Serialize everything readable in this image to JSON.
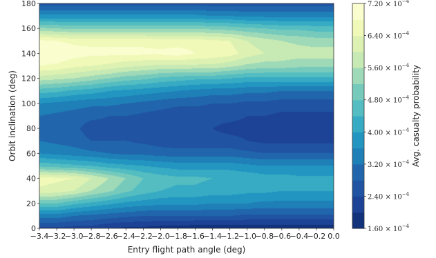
{
  "chart_data": {
    "type": "heatmap",
    "subtype": "filled-contour",
    "title": "",
    "xlabel": "Entry flight path angle (deg)",
    "ylabel": "Orbit inclination (deg)",
    "colorbar_label": "Avg. casualty probability",
    "x": [
      -3.4,
      -3.2,
      -3.0,
      -2.8,
      -2.6,
      -2.4,
      -2.2,
      -2.0,
      -1.8,
      -1.6,
      -1.4,
      -1.2,
      -1.0,
      -0.8,
      -0.6,
      -0.4,
      -0.2,
      0.0
    ],
    "y": [
      0,
      10,
      20,
      30,
      40,
      50,
      60,
      70,
      80,
      90,
      100,
      110,
      120,
      130,
      140,
      150,
      160,
      170,
      180
    ],
    "xlim": [
      -3.4,
      0.0
    ],
    "ylim": [
      0,
      180
    ],
    "xtick_labels": [
      "−3.4",
      "−3.2",
      "−3.0",
      "−2.8",
      "−2.6",
      "−2.4",
      "−2.2",
      "−2.0",
      "−1.8",
      "−1.6",
      "−1.4",
      "−1.2",
      "−1.0",
      "−0.8",
      "−0.6",
      "−0.4",
      "−0.2",
      "0.0"
    ],
    "ytick_labels": [
      "0",
      "20",
      "40",
      "60",
      "80",
      "100",
      "120",
      "140",
      "160",
      "180"
    ],
    "colorbar_ticks": [
      {
        "value": 0.00072,
        "mantissa": "7.20",
        "exp": "−4"
      },
      {
        "value": 0.00064,
        "mantissa": "6.40",
        "exp": "−4"
      },
      {
        "value": 0.00056,
        "mantissa": "5.60",
        "exp": "−4"
      },
      {
        "value": 0.00048,
        "mantissa": "4.80",
        "exp": "−4"
      },
      {
        "value": 0.0004,
        "mantissa": "4.00",
        "exp": "−4"
      },
      {
        "value": 0.00032,
        "mantissa": "3.20",
        "exp": "−4"
      },
      {
        "value": 0.00024,
        "mantissa": "2.40",
        "exp": "−4"
      },
      {
        "value": 0.00016,
        "mantissa": "1.60",
        "exp": "−4"
      }
    ],
    "cbar_range": [
      0.00016,
      0.00072
    ],
    "colormap": "YlGnBu",
    "colormap_stops": [
      "#0c2a6f",
      "#20479c",
      "#2166ac",
      "#1d91c0",
      "#41b6c4",
      "#7fcdbb",
      "#c7e9b4",
      "#edf8b1",
      "#ffffd9"
    ],
    "grid": false,
    "values_e4": [
      [
        2.3,
        2.3,
        2.2,
        2.2,
        2.0,
        1.9,
        1.9,
        1.8,
        1.8,
        1.7,
        1.7,
        1.7,
        1.7,
        1.7,
        1.7,
        1.7,
        1.7,
        1.7
      ],
      [
        3.4,
        3.4,
        3.2,
        3.1,
        3.0,
        2.9,
        2.8,
        2.8,
        2.8,
        2.8,
        2.8,
        2.8,
        2.7,
        2.7,
        2.7,
        2.7,
        2.7,
        2.7
      ],
      [
        4.8,
        4.8,
        4.5,
        4.3,
        4.1,
        3.9,
        3.8,
        3.7,
        3.7,
        3.7,
        3.6,
        3.6,
        3.6,
        3.5,
        3.5,
        3.5,
        3.5,
        3.5
      ],
      [
        6.3,
        6.2,
        6.0,
        5.6,
        5.3,
        4.9,
        4.6,
        4.4,
        4.3,
        4.3,
        4.2,
        4.2,
        4.1,
        4.1,
        4.0,
        4.0,
        4.0,
        4.0
      ],
      [
        6.6,
        6.5,
        6.4,
        6.0,
        5.6,
        5.2,
        4.8,
        4.6,
        4.5,
        4.5,
        4.4,
        4.4,
        4.3,
        4.2,
        4.2,
        4.1,
        4.1,
        4.1
      ],
      [
        4.7,
        4.6,
        4.5,
        4.4,
        4.2,
        4.1,
        4.0,
        3.9,
        3.8,
        3.8,
        3.8,
        3.8,
        3.7,
        3.6,
        3.6,
        3.6,
        3.6,
        3.6
      ],
      [
        3.6,
        3.5,
        3.4,
        3.3,
        3.2,
        3.1,
        3.1,
        3.0,
        3.0,
        3.0,
        3.0,
        3.0,
        2.9,
        2.8,
        2.8,
        2.8,
        2.8,
        2.8
      ],
      [
        3.2,
        3.1,
        3.0,
        2.8,
        2.8,
        2.8,
        2.7,
        2.6,
        2.5,
        2.5,
        2.5,
        2.5,
        2.4,
        2.3,
        2.3,
        2.3,
        2.3,
        2.3
      ],
      [
        3.1,
        3.0,
        2.9,
        2.6,
        2.7,
        2.7,
        2.6,
        2.4,
        2.4,
        2.4,
        2.4,
        2.3,
        2.3,
        2.3,
        2.3,
        2.3,
        2.3,
        2.3
      ],
      [
        3.2,
        3.1,
        3.0,
        2.9,
        2.8,
        2.8,
        2.7,
        2.6,
        2.5,
        2.5,
        2.5,
        2.5,
        2.4,
        2.4,
        2.3,
        2.3,
        2.3,
        2.3
      ],
      [
        3.6,
        3.5,
        3.4,
        3.3,
        3.3,
        3.2,
        3.1,
        3.0,
        2.9,
        2.9,
        2.8,
        2.8,
        2.7,
        2.7,
        2.6,
        2.6,
        2.6,
        2.6
      ],
      [
        4.6,
        4.5,
        4.3,
        4.2,
        4.0,
        3.9,
        3.8,
        3.7,
        3.6,
        3.5,
        3.4,
        3.4,
        3.3,
        3.3,
        3.2,
        3.2,
        3.2,
        3.2
      ],
      [
        5.8,
        5.7,
        5.6,
        5.4,
        5.2,
        5.0,
        4.9,
        4.7,
        4.6,
        4.5,
        4.5,
        4.4,
        4.3,
        4.3,
        4.3,
        4.3,
        4.3,
        4.3
      ],
      [
        6.8,
        6.7,
        6.5,
        6.4,
        6.3,
        6.1,
        6.0,
        5.9,
        5.9,
        5.9,
        5.9,
        5.7,
        5.5,
        5.4,
        5.4,
        5.3,
        5.3,
        5.3
      ],
      [
        7.3,
        7.2,
        7.0,
        6.9,
        6.9,
        6.9,
        6.9,
        6.9,
        7.0,
        6.8,
        6.7,
        6.6,
        6.2,
        6.0,
        5.9,
        5.8,
        5.8,
        5.8
      ],
      [
        6.9,
        6.8,
        6.7,
        6.7,
        6.7,
        6.7,
        6.7,
        6.6,
        6.6,
        6.6,
        6.5,
        6.4,
        6.0,
        5.8,
        5.6,
        5.5,
        5.4,
        5.4
      ],
      [
        5.3,
        5.2,
        5.1,
        5.1,
        5.1,
        5.1,
        5.1,
        5.1,
        5.1,
        5.1,
        5.1,
        5.0,
        4.9,
        4.8,
        4.7,
        4.7,
        4.6,
        4.6
      ],
      [
        3.7,
        3.7,
        3.7,
        3.7,
        3.7,
        3.7,
        3.7,
        3.7,
        3.7,
        3.7,
        3.6,
        3.6,
        3.5,
        3.5,
        3.5,
        3.5,
        3.5,
        3.5
      ],
      [
        2.6,
        2.6,
        2.6,
        2.6,
        2.6,
        2.6,
        2.6,
        2.6,
        2.6,
        2.6,
        2.6,
        2.6,
        2.6,
        2.6,
        2.6,
        2.6,
        2.6,
        2.6
      ]
    ]
  }
}
